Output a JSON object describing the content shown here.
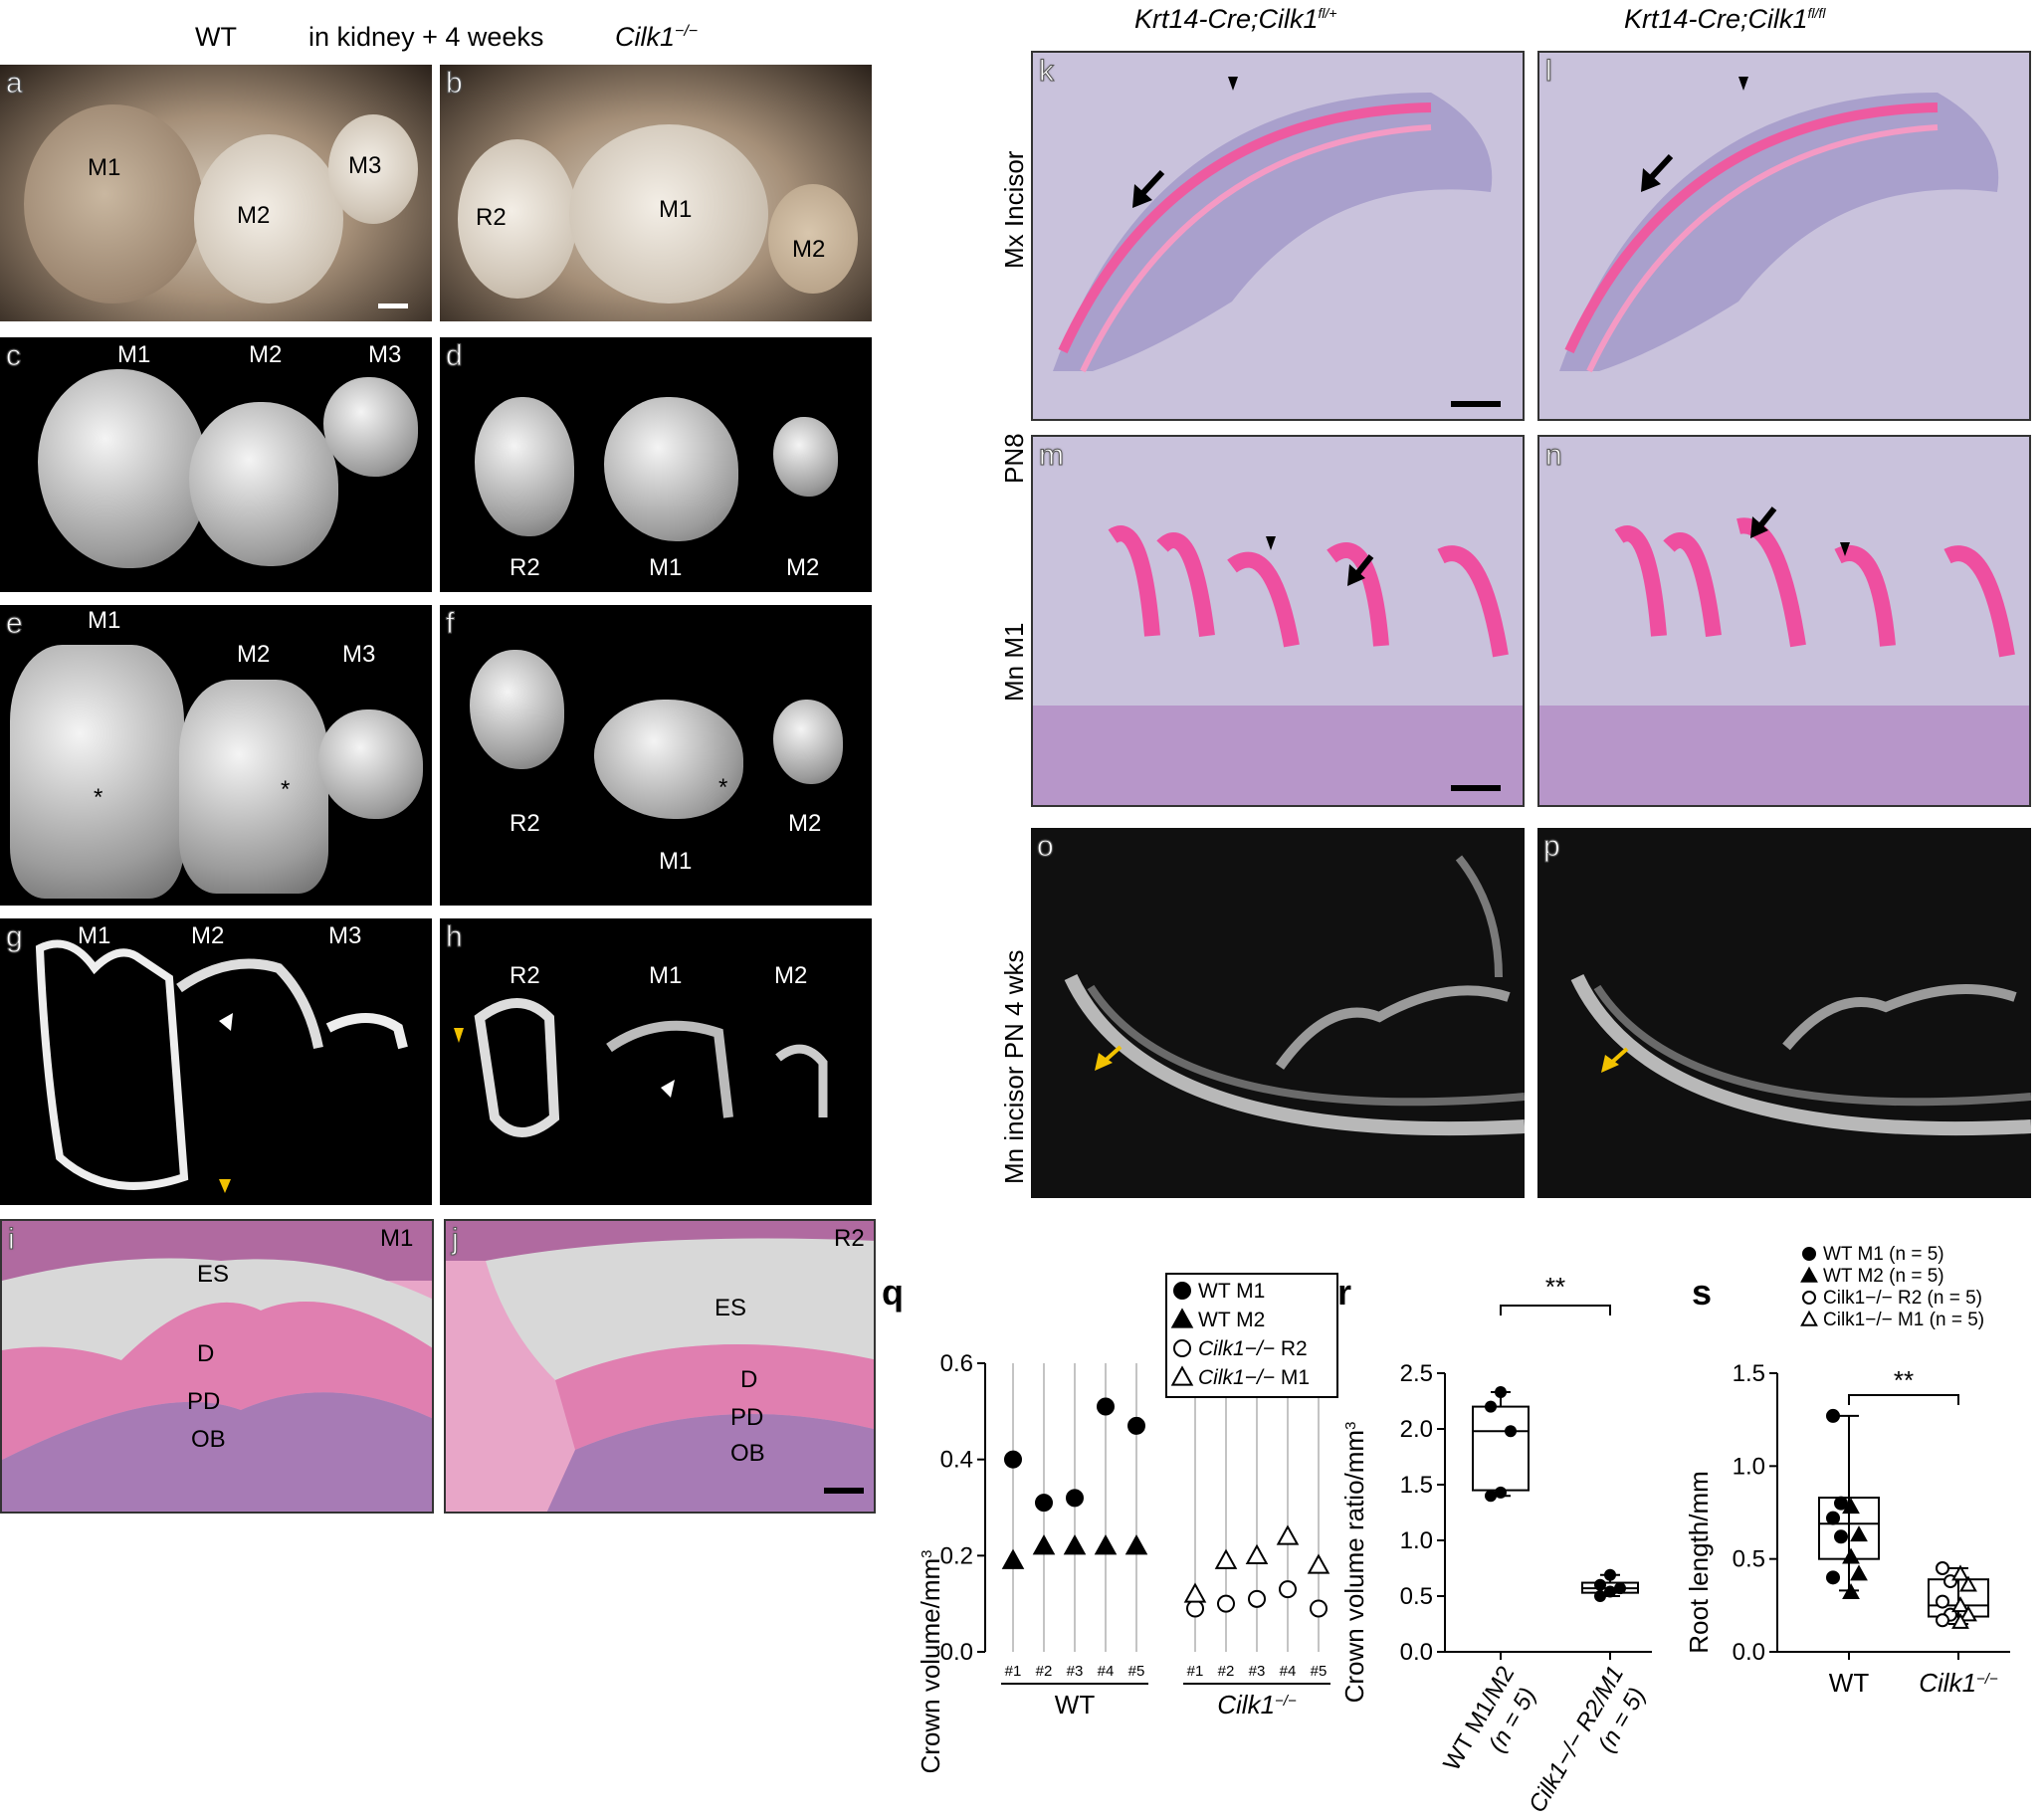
{
  "headers": {
    "wt": "WT",
    "condition": "in kidney + 4 weeks",
    "ko": "Cilk1",
    "ko_sup": "−/−",
    "het": "Krt14-Cre;Cilk1",
    "het_sup": "fl/+",
    "cko": "Krt14-Cre;Cilk1",
    "cko_sup": "fl/fl"
  },
  "side_labels": {
    "mx": "Mx Incisor",
    "pn8": "PN8",
    "mn": "Mn M1",
    "mn_incisor": "Mn incisor PN 4 wks"
  },
  "panels": {
    "a": {
      "letter": "a",
      "labels": [
        "M1",
        "M2",
        "M3"
      ]
    },
    "b": {
      "letter": "b",
      "labels": [
        "R2",
        "M1",
        "M2"
      ]
    },
    "c": {
      "letter": "c",
      "labels": [
        "M1",
        "M2",
        "M3"
      ]
    },
    "d": {
      "letter": "d",
      "labels": [
        "R2",
        "M1",
        "M2"
      ]
    },
    "e": {
      "letter": "e",
      "labels": [
        "M1",
        "M2",
        "M3"
      ],
      "marker": "*"
    },
    "f": {
      "letter": "f",
      "labels": [
        "R2",
        "M1",
        "M2"
      ],
      "marker": "*"
    },
    "g": {
      "letter": "g",
      "labels": [
        "M1",
        "M2",
        "M3"
      ]
    },
    "h": {
      "letter": "h",
      "labels": [
        "R2",
        "M1",
        "M2"
      ]
    },
    "i": {
      "letter": "i",
      "labels": [
        "M1",
        "ES",
        "D",
        "PD",
        "OB"
      ]
    },
    "j": {
      "letter": "j",
      "labels": [
        "R2",
        "ES",
        "D",
        "PD",
        "OB"
      ]
    },
    "k": {
      "letter": "k"
    },
    "l": {
      "letter": "l"
    },
    "m": {
      "letter": "m"
    },
    "n": {
      "letter": "n"
    },
    "o": {
      "letter": "o"
    },
    "p": {
      "letter": "p"
    }
  },
  "chart_q": {
    "letter": "q",
    "ylabel": "Crown volume/mm",
    "ylabel_sup": "3",
    "yticks": [
      "0.0",
      "0.2",
      "0.4",
      "0.6"
    ],
    "samples": [
      "#1",
      "#2",
      "#3",
      "#4",
      "#5"
    ],
    "group_wt": "WT",
    "group_ko": "Cilk1",
    "group_ko_sup": "−/−",
    "legend": [
      {
        "pre": "WT",
        "name": "M1",
        "marker": "filled-circle"
      },
      {
        "pre": "WT",
        "name": "M2",
        "marker": "filled-triangle"
      },
      {
        "pre": "Cilk1−/−",
        "name": "R2",
        "marker": "open-circle"
      },
      {
        "pre": "Cilk1−/−",
        "name": "M1",
        "marker": "open-triangle"
      }
    ]
  },
  "chart_r": {
    "letter": "r",
    "ylabel": "Crown volume ratio/mm",
    "ylabel_sup": "3",
    "yticks": [
      "0.0",
      "0.5",
      "1.0",
      "1.5",
      "2.0",
      "2.5"
    ],
    "sig": "**",
    "cat1_l1": "WT   M1/M2",
    "cat1_l2": "(n = 5)",
    "cat2_l1": "Cilk1−/− R2/M1",
    "cat2_l2": "(n = 5)"
  },
  "chart_s": {
    "letter": "s",
    "ylabel": "Root length/mm",
    "yticks": [
      "0.0",
      "0.5",
      "1.0",
      "1.5"
    ],
    "sig": "**",
    "cat1": "WT",
    "cat2": "Cilk1",
    "cat2_sup": "−/−",
    "legend": [
      {
        "text": "WT  M1 (n = 5)",
        "marker": "filled-circle"
      },
      {
        "text": "WT  M2 (n = 5)",
        "marker": "filled-triangle"
      },
      {
        "text": "Cilk1−/− R2 (n = 5)",
        "marker": "open-circle"
      },
      {
        "text": "Cilk1−/− M1 (n = 5)",
        "marker": "open-triangle"
      }
    ]
  },
  "chart_data": [
    {
      "type": "scatter",
      "panel": "q",
      "ylabel": "Crown volume/mm3",
      "ylim": [
        0,
        0.6
      ],
      "categories": [
        "#1",
        "#2",
        "#3",
        "#4",
        "#5"
      ],
      "series": [
        {
          "name": "WT M1",
          "values": [
            0.4,
            0.31,
            0.32,
            0.51,
            0.47
          ]
        },
        {
          "name": "WT M2",
          "values": [
            0.19,
            0.22,
            0.22,
            0.22,
            0.22
          ]
        },
        {
          "name": "Cilk1−/− R2",
          "values": [
            0.09,
            0.1,
            0.11,
            0.13,
            0.09
          ]
        },
        {
          "name": "Cilk1−/− M1",
          "values": [
            0.12,
            0.19,
            0.2,
            0.24,
            0.18
          ]
        }
      ],
      "colors": {
        "marker": "#000000",
        "grid": "#888888"
      }
    },
    {
      "type": "box",
      "panel": "r",
      "ylabel": "Crown volume ratio/mm3",
      "ylim": [
        0,
        2.5
      ],
      "categories": [
        "WT M1/M2 (n = 5)",
        "Cilk1−/− R2/M1 (n = 5)"
      ],
      "boxes": [
        {
          "min": 1.4,
          "q1": 1.45,
          "median": 1.98,
          "q3": 2.2,
          "max": 2.33,
          "points": [
            1.4,
            1.43,
            1.98,
            2.2,
            2.33
          ]
        },
        {
          "min": 0.5,
          "q1": 0.53,
          "median": 0.57,
          "q3": 0.62,
          "max": 0.69,
          "points": [
            0.5,
            0.54,
            0.57,
            0.6,
            0.69
          ]
        }
      ],
      "significance": "**"
    },
    {
      "type": "box",
      "panel": "s",
      "ylabel": "Root length/mm",
      "ylim": [
        0,
        1.5
      ],
      "categories": [
        "WT",
        "Cilk1−/−"
      ],
      "boxes": [
        {
          "min": 0.33,
          "q1": 0.5,
          "median": 0.69,
          "q3": 0.83,
          "max": 1.27,
          "points_filled_circle": [
            1.27,
            0.8,
            0.72,
            0.62,
            0.4
          ],
          "points_filled_triangle": [
            0.78,
            0.63,
            0.51,
            0.42,
            0.32
          ]
        },
        {
          "min": 0.15,
          "q1": 0.19,
          "median": 0.25,
          "q3": 0.39,
          "max": 0.45,
          "points_open_circle": [
            0.45,
            0.38,
            0.27,
            0.2,
            0.17
          ],
          "points_open_triangle": [
            0.42,
            0.36,
            0.25,
            0.2,
            0.16
          ]
        }
      ],
      "significance": "**"
    }
  ]
}
